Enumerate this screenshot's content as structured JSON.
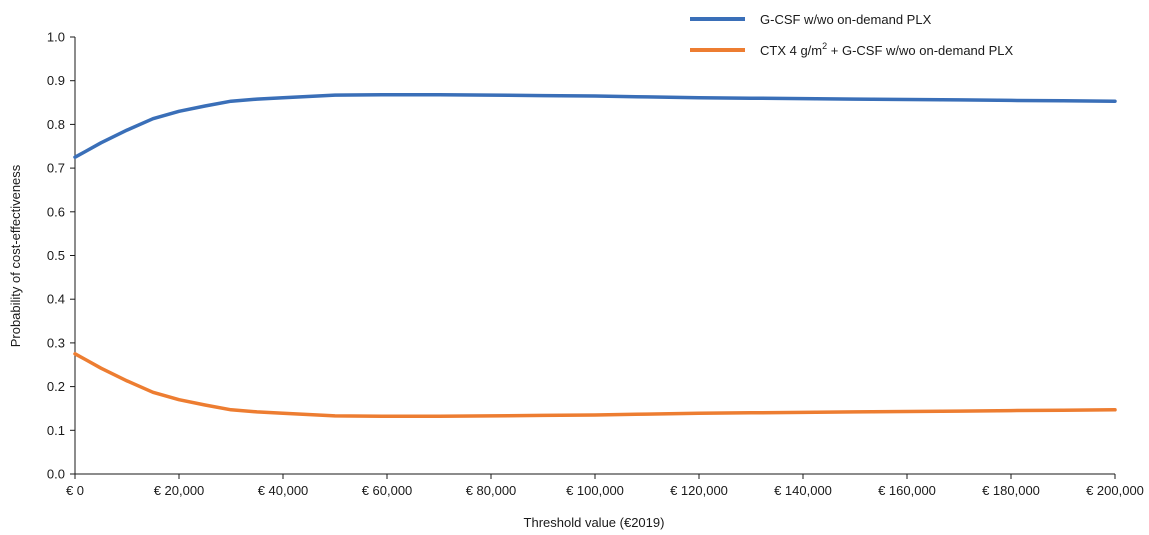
{
  "chart_data": {
    "type": "line",
    "title": "",
    "xlabel": "Threshold value (€2019)",
    "ylabel": "Probability of cost-effectiveness",
    "xlim": [
      0,
      200000
    ],
    "ylim": [
      0.0,
      1.0
    ],
    "grid": false,
    "legend_position": "top-right",
    "x_tick_labels": [
      "€ 0",
      "€ 20,000",
      "€ 40,000",
      "€ 60,000",
      "€ 80,000",
      "€ 100,000",
      "€ 120,000",
      "€ 140,000",
      "€ 160,000",
      "€ 180,000",
      "€ 200,000"
    ],
    "x_tick_values": [
      0,
      20000,
      40000,
      60000,
      80000,
      100000,
      120000,
      140000,
      160000,
      180000,
      200000
    ],
    "y_tick_labels": [
      "0.0",
      "0.1",
      "0.2",
      "0.3",
      "0.4",
      "0.5",
      "0.6",
      "0.7",
      "0.8",
      "0.9",
      "1.0"
    ],
    "y_tick_values": [
      0.0,
      0.1,
      0.2,
      0.3,
      0.4,
      0.5,
      0.6,
      0.7,
      0.8,
      0.9,
      1.0
    ],
    "series": [
      {
        "name": "G-CSF w/wo on-demand PLX",
        "color": "#3a6fb8",
        "x": [
          0,
          2000,
          5000,
          10000,
          15000,
          20000,
          25000,
          30000,
          35000,
          40000,
          50000,
          60000,
          70000,
          80000,
          90000,
          100000,
          110000,
          120000,
          130000,
          140000,
          150000,
          160000,
          170000,
          180000,
          190000,
          200000
        ],
        "y": [
          0.725,
          0.738,
          0.758,
          0.787,
          0.813,
          0.83,
          0.842,
          0.853,
          0.858,
          0.861,
          0.867,
          0.868,
          0.868,
          0.867,
          0.866,
          0.865,
          0.863,
          0.861,
          0.86,
          0.859,
          0.858,
          0.857,
          0.856,
          0.855,
          0.854,
          0.853
        ]
      },
      {
        "name_parts": [
          "CTX 4 g/m",
          "2",
          " + G-CSF w/wo on-demand PLX"
        ],
        "color": "#ed7d31",
        "x": [
          0,
          2000,
          5000,
          10000,
          15000,
          20000,
          25000,
          30000,
          35000,
          40000,
          50000,
          60000,
          70000,
          80000,
          90000,
          100000,
          110000,
          120000,
          130000,
          140000,
          150000,
          160000,
          170000,
          180000,
          190000,
          200000
        ],
        "y": [
          0.275,
          0.262,
          0.242,
          0.213,
          0.187,
          0.17,
          0.158,
          0.147,
          0.142,
          0.139,
          0.133,
          0.132,
          0.132,
          0.133,
          0.134,
          0.135,
          0.137,
          0.139,
          0.14,
          0.141,
          0.142,
          0.143,
          0.144,
          0.145,
          0.146,
          0.147
        ]
      }
    ]
  }
}
